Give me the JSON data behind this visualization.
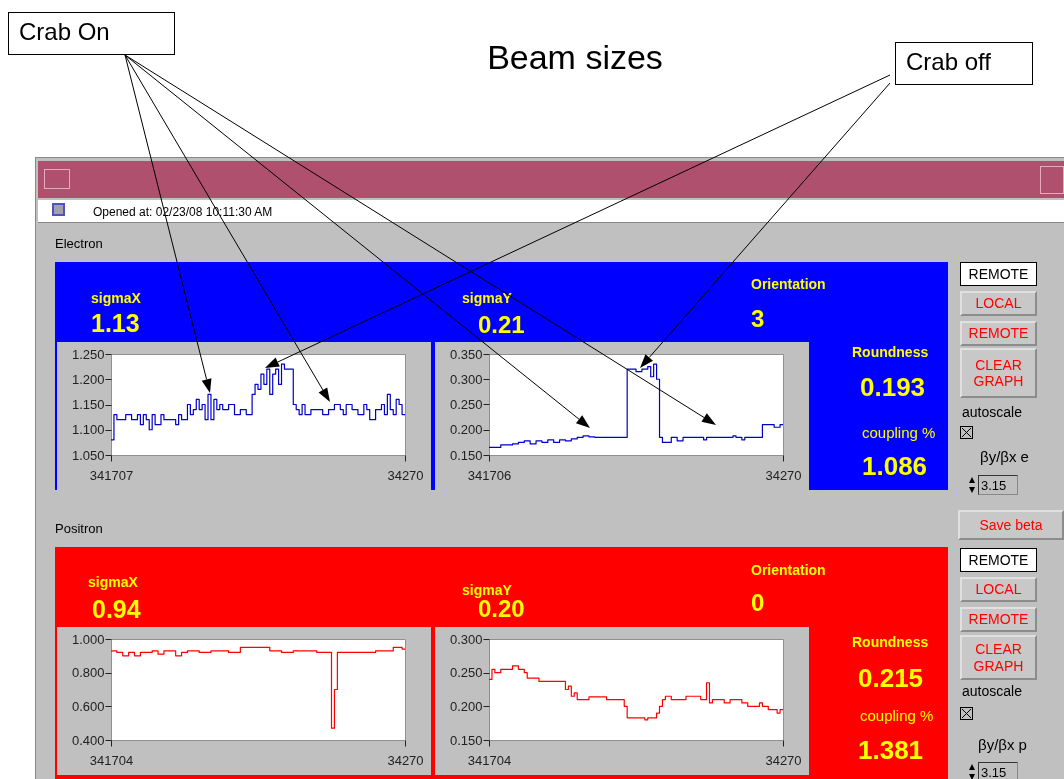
{
  "chart_data": [
    {
      "type": "other",
      "title": "Beam sizes",
      "annotations": [
        "Crab On",
        "Crab off"
      ]
    },
    {
      "type": "other",
      "annotations": [
        "Opened at: 02/23/08 10:11:30 AM",
        "Electron",
        "Positron"
      ]
    },
    {
      "type": "other",
      "annotations": [
        "sigmaX",
        "1.13",
        "sigmaY",
        "0.21",
        "Orientation",
        "3",
        "Roundness",
        "0.193",
        "coupling %",
        "1.086"
      ]
    },
    {
      "type": "step",
      "color": "#0000c8",
      "ylim": [
        1.05,
        1.25
      ],
      "yticks": [
        {
          "value": 1.05,
          "label": "1.050"
        },
        {
          "value": 1.1,
          "label": "1.100"
        },
        {
          "value": 1.15,
          "label": "1.150"
        },
        {
          "value": 1.2,
          "label": "1.200"
        },
        {
          "value": 1.25,
          "label": "1.250"
        }
      ],
      "categories": [
        "341707",
        null,
        null,
        null,
        null,
        null,
        null,
        null,
        null,
        null,
        null,
        null,
        null,
        null,
        null,
        null,
        null,
        null,
        null,
        null,
        null,
        null,
        null,
        null,
        null,
        null,
        null,
        null,
        null,
        null,
        null,
        null,
        null,
        null,
        null,
        null,
        null,
        null,
        null,
        null,
        null,
        null,
        null,
        null,
        null,
        null,
        null,
        null,
        null,
        null,
        null,
        null,
        null,
        null,
        null,
        null,
        null,
        null,
        null,
        null,
        null,
        null,
        null,
        null,
        null,
        null,
        null,
        null,
        null,
        null,
        null,
        null,
        null,
        null,
        null,
        null,
        null,
        null,
        null,
        null,
        null,
        null,
        null,
        null,
        null,
        null,
        null,
        null,
        null,
        null,
        null,
        null,
        null,
        null,
        null,
        null,
        null,
        null,
        null,
        null,
        "34270"
      ],
      "values": [
        1.08,
        1.13,
        1.12,
        1.12,
        1.12,
        1.13,
        1.13,
        1.12,
        1.12,
        1.13,
        1.11,
        1.13,
        1.12,
        1.1,
        1.13,
        1.11,
        1.11,
        1.13,
        1.12,
        1.12,
        1.12,
        1.12,
        1.11,
        1.13,
        1.12,
        1.12,
        1.15,
        1.13,
        1.14,
        1.16,
        1.14,
        1.15,
        1.12,
        1.17,
        1.12,
        1.16,
        1.14,
        1.15,
        1.14,
        1.14,
        1.15,
        1.15,
        1.13,
        1.13,
        1.14,
        1.14,
        1.13,
        1.13,
        1.17,
        1.19,
        1.18,
        1.21,
        1.19,
        1.22,
        1.17,
        1.21,
        1.22,
        1.19,
        1.23,
        1.22,
        1.22,
        1.22,
        1.15,
        1.14,
        1.13,
        1.15,
        1.13,
        1.13,
        1.14,
        1.14,
        1.14,
        1.14,
        1.13,
        1.13,
        1.14,
        1.14,
        1.15,
        1.15,
        1.14,
        1.13,
        1.15,
        1.15,
        1.14,
        1.14,
        1.13,
        1.13,
        1.15,
        1.14,
        1.12,
        1.12,
        1.14,
        1.14,
        1.15,
        1.13,
        1.17,
        1.14,
        1.13,
        1.16,
        1.15,
        1.13,
        1.13
      ]
    },
    {
      "type": "step",
      "color": "#0000c8",
      "ylim": [
        0.15,
        0.35
      ],
      "yticks": [
        {
          "value": 0.15,
          "label": "0.150"
        },
        {
          "value": 0.2,
          "label": "0.200"
        },
        {
          "value": 0.25,
          "label": "0.250"
        },
        {
          "value": 0.3,
          "label": "0.300"
        },
        {
          "value": 0.35,
          "label": "0.350"
        }
      ],
      "categories": [
        "341706",
        null,
        null,
        null,
        null,
        null,
        null,
        null,
        null,
        null,
        null,
        null,
        null,
        null,
        null,
        null,
        null,
        null,
        null,
        null,
        null,
        null,
        null,
        null,
        null,
        null,
        null,
        null,
        null,
        null,
        null,
        null,
        null,
        null,
        null,
        null,
        null,
        null,
        null,
        null,
        null,
        null,
        null,
        null,
        null,
        null,
        null,
        null,
        null,
        null,
        null,
        null,
        null,
        null,
        null,
        null,
        null,
        null,
        null,
        null,
        null,
        null,
        null,
        null,
        null,
        null,
        null,
        null,
        null,
        null,
        null,
        null,
        null,
        null,
        null,
        null,
        null,
        null,
        null,
        null,
        null,
        null,
        null,
        null,
        null,
        null,
        null,
        null,
        null,
        null,
        null,
        null,
        null,
        null,
        null,
        null,
        null,
        null,
        null,
        null,
        "34270"
      ],
      "values": [
        0.165,
        0.165,
        0.165,
        0.165,
        0.17,
        0.17,
        0.17,
        0.17,
        0.172,
        0.172,
        0.175,
        0.175,
        0.178,
        0.178,
        0.172,
        0.172,
        0.178,
        0.178,
        0.175,
        0.175,
        0.18,
        0.18,
        0.175,
        0.175,
        0.18,
        0.18,
        0.178,
        0.178,
        0.182,
        0.182,
        0.185,
        0.185,
        0.188,
        0.188,
        0.186,
        0.186,
        0.185,
        0.185,
        0.185,
        0.185,
        0.185,
        0.185,
        0.185,
        0.185,
        0.185,
        0.185,
        0.185,
        0.32,
        0.32,
        0.32,
        0.315,
        0.315,
        0.32,
        0.32,
        0.325,
        0.305,
        0.33,
        0.3,
        0.185,
        0.175,
        0.175,
        0.175,
        0.185,
        0.185,
        0.178,
        0.178,
        0.185,
        0.185,
        0.185,
        0.185,
        0.185,
        0.185,
        0.185,
        0.18,
        0.185,
        0.185,
        0.185,
        0.185,
        0.185,
        0.185,
        0.185,
        0.185,
        0.185,
        0.188,
        0.185,
        0.185,
        0.18,
        0.185,
        0.185,
        0.185,
        0.185,
        0.185,
        0.185,
        0.21,
        0.21,
        0.21,
        0.21,
        0.205,
        0.205,
        0.21,
        0.21
      ]
    },
    {
      "type": "other",
      "annotations": [
        "REMOTE",
        "LOCAL",
        "REMOTE",
        "CLEAR GRAPH",
        "autoscale",
        "βy/βx e",
        "3.15",
        "Save beta"
      ]
    },
    {
      "type": "other",
      "annotations": [
        "sigmaX",
        "0.94",
        "sigmaY",
        "0.20",
        "Orientation",
        "0",
        "Roundness",
        "0.215",
        "coupling %",
        "1.381"
      ]
    },
    {
      "type": "step",
      "color": "#ff0000",
      "ylim": [
        0.4,
        1.0
      ],
      "yticks": [
        {
          "value": 0.4,
          "label": "0.400"
        },
        {
          "value": 0.6,
          "label": "0.600"
        },
        {
          "value": 0.8,
          "label": "0.800"
        },
        {
          "value": 1.0,
          "label": "1.000"
        }
      ],
      "categories": [
        "341704",
        null,
        null,
        null,
        null,
        null,
        null,
        null,
        null,
        null,
        null,
        null,
        null,
        null,
        null,
        null,
        null,
        null,
        null,
        null,
        null,
        null,
        null,
        null,
        null,
        null,
        null,
        null,
        null,
        null,
        null,
        null,
        null,
        null,
        null,
        null,
        null,
        null,
        null,
        null,
        null,
        null,
        null,
        null,
        null,
        null,
        null,
        null,
        null,
        null,
        null,
        null,
        null,
        null,
        null,
        null,
        null,
        null,
        null,
        null,
        null,
        null,
        null,
        null,
        null,
        null,
        null,
        null,
        null,
        null,
        null,
        null,
        null,
        null,
        null,
        null,
        null,
        null,
        null,
        null,
        null,
        null,
        null,
        null,
        null,
        null,
        null,
        null,
        null,
        null,
        null,
        null,
        null,
        null,
        null,
        null,
        null,
        null,
        null,
        null,
        "34270"
      ],
      "values": [
        0.93,
        0.93,
        0.92,
        0.92,
        0.9,
        0.9,
        0.92,
        0.92,
        0.9,
        0.9,
        0.92,
        0.92,
        0.92,
        0.92,
        0.93,
        0.93,
        0.91,
        0.91,
        0.93,
        0.93,
        0.93,
        0.93,
        0.9,
        0.9,
        0.92,
        0.92,
        0.93,
        0.93,
        0.93,
        0.93,
        0.92,
        0.92,
        0.92,
        0.92,
        0.93,
        0.93,
        0.93,
        0.93,
        0.93,
        0.93,
        0.92,
        0.92,
        0.92,
        0.92,
        0.95,
        0.95,
        0.95,
        0.95,
        0.95,
        0.95,
        0.95,
        0.95,
        0.95,
        0.95,
        0.93,
        0.93,
        0.93,
        0.93,
        0.92,
        0.92,
        0.92,
        0.92,
        0.93,
        0.93,
        0.93,
        0.93,
        0.93,
        0.93,
        0.93,
        0.93,
        0.92,
        0.92,
        0.92,
        0.92,
        0.92,
        0.47,
        0.7,
        0.92,
        0.92,
        0.92,
        0.92,
        0.92,
        0.92,
        0.92,
        0.92,
        0.92,
        0.92,
        0.92,
        0.92,
        0.92,
        0.93,
        0.93,
        0.93,
        0.93,
        0.93,
        0.93,
        0.95,
        0.95,
        0.95,
        0.94,
        0.94
      ]
    },
    {
      "type": "step",
      "color": "#ff0000",
      "ylim": [
        0.15,
        0.3
      ],
      "yticks": [
        {
          "value": 0.15,
          "label": "0.150"
        },
        {
          "value": 0.2,
          "label": "0.200"
        },
        {
          "value": 0.25,
          "label": "0.250"
        },
        {
          "value": 0.3,
          "label": "0.300"
        }
      ],
      "categories": [
        "341704",
        null,
        null,
        null,
        null,
        null,
        null,
        null,
        null,
        null,
        null,
        null,
        null,
        null,
        null,
        null,
        null,
        null,
        null,
        null,
        null,
        null,
        null,
        null,
        null,
        null,
        null,
        null,
        null,
        null,
        null,
        null,
        null,
        null,
        null,
        null,
        null,
        null,
        null,
        null,
        null,
        null,
        null,
        null,
        null,
        null,
        null,
        null,
        null,
        null,
        null,
        null,
        null,
        null,
        null,
        null,
        null,
        null,
        null,
        null,
        null,
        null,
        null,
        null,
        null,
        null,
        null,
        null,
        null,
        null,
        null,
        null,
        null,
        null,
        null,
        null,
        null,
        null,
        null,
        null,
        null,
        null,
        null,
        null,
        null,
        null,
        null,
        null,
        null,
        null,
        null,
        null,
        null,
        null,
        null,
        null,
        null,
        null,
        null,
        null,
        "34270"
      ],
      "values": [
        0.24,
        0.255,
        0.25,
        0.25,
        0.255,
        0.255,
        0.255,
        0.255,
        0.26,
        0.26,
        0.255,
        0.255,
        0.25,
        0.242,
        0.242,
        0.242,
        0.242,
        0.237,
        0.237,
        0.237,
        0.237,
        0.237,
        0.237,
        0.237,
        0.237,
        0.237,
        0.225,
        0.23,
        0.215,
        0.22,
        0.21,
        0.21,
        0.21,
        0.21,
        0.214,
        0.214,
        0.214,
        0.214,
        0.214,
        0.214,
        0.21,
        0.21,
        0.21,
        0.21,
        0.21,
        0.21,
        0.2,
        0.183,
        0.183,
        0.183,
        0.183,
        0.183,
        0.183,
        0.18,
        0.183,
        0.183,
        0.183,
        0.19,
        0.2,
        0.21,
        0.215,
        0.215,
        0.21,
        0.21,
        0.21,
        0.21,
        0.21,
        0.215,
        0.215,
        0.215,
        0.215,
        0.215,
        0.21,
        0.21,
        0.235,
        0.205,
        0.21,
        0.21,
        0.21,
        0.21,
        0.205,
        0.205,
        0.21,
        0.21,
        0.21,
        0.21,
        0.205,
        0.205,
        0.2,
        0.2,
        0.2,
        0.2,
        0.205,
        0.2,
        0.2,
        0.195,
        0.195,
        0.195,
        0.19,
        0.195,
        0.195
      ]
    },
    {
      "type": "other",
      "annotations": [
        "REMOTE",
        "LOCAL",
        "REMOTE",
        "CLEAR GRAPH",
        "autoscale",
        "βy/βx p",
        "3.15"
      ]
    }
  ]
}
